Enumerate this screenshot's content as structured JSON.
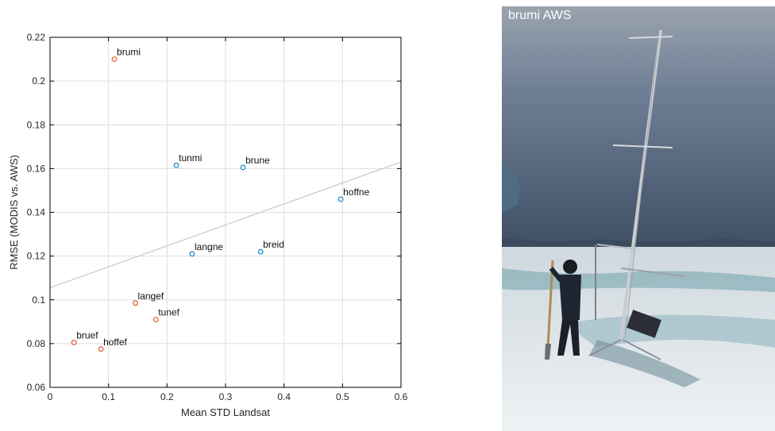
{
  "chart_data": {
    "type": "scatter",
    "title": "",
    "xlabel": "Mean STD Landsat",
    "ylabel": "RMSE (MODIS vs. AWS)",
    "xlim": [
      0,
      0.6
    ],
    "ylim": [
      0.06,
      0.22
    ],
    "xticks": [
      0,
      0.1,
      0.2,
      0.3,
      0.4,
      0.5,
      0.6
    ],
    "xtick_labels": [
      "0",
      "0.1",
      "0.2",
      "0.3",
      "0.4",
      "0.5",
      "0.6"
    ],
    "yticks": [
      0.06,
      0.08,
      0.1,
      0.12,
      0.14,
      0.16,
      0.18,
      0.2,
      0.22
    ],
    "ytick_labels": [
      "0.06",
      "0.08",
      "0.1",
      "0.12",
      "0.14",
      "0.16",
      "0.18",
      "0.2",
      "0.22"
    ],
    "grid": true,
    "legend": "none",
    "series": [
      {
        "color": "#e8603c",
        "points": [
          {
            "label": "brumi",
            "x": 0.11,
            "y": 0.21
          },
          {
            "label": "langef",
            "x": 0.146,
            "y": 0.0985
          },
          {
            "label": "tunef",
            "x": 0.181,
            "y": 0.091
          },
          {
            "label": "bruef",
            "x": 0.041,
            "y": 0.0805
          },
          {
            "label": "hoffef",
            "x": 0.087,
            "y": 0.0775
          }
        ]
      },
      {
        "color": "#1f8ec9",
        "points": [
          {
            "label": "tunmi",
            "x": 0.216,
            "y": 0.1615
          },
          {
            "label": "brune",
            "x": 0.33,
            "y": 0.1605
          },
          {
            "label": "hoffne",
            "x": 0.497,
            "y": 0.146
          },
          {
            "label": "langne",
            "x": 0.243,
            "y": 0.121
          },
          {
            "label": "breid",
            "x": 0.36,
            "y": 0.122
          }
        ]
      }
    ],
    "fit_line": {
      "x": [
        0,
        0.6
      ],
      "y": [
        0.1055,
        0.163
      ],
      "color": "#c8c8c8"
    }
  },
  "photo": {
    "label": "brumi AWS",
    "colors": {
      "sky": "#5a6a82",
      "ice": "#dfe6ea",
      "water": "#7fa6b0",
      "mast": "#c9ccd0"
    }
  }
}
